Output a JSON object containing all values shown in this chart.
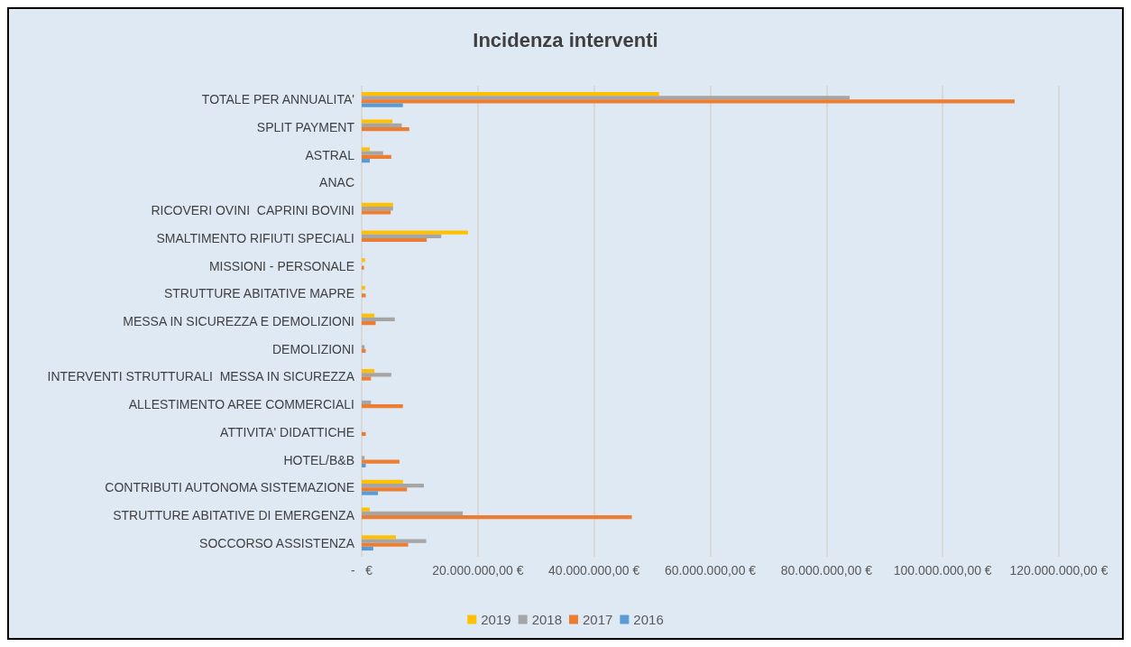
{
  "chart_data": {
    "type": "bar",
    "orientation": "horizontal",
    "title": "Incidenza interventi",
    "categories": [
      "TOTALE PER ANNUALITA'",
      "SPLIT PAYMENT",
      "ASTRAL",
      "ANAC",
      "RICOVERI OVINI  CAPRINI BOVINI",
      "SMALTIMENTO RIFIUTI SPECIALI",
      "MISSIONI - PERSONALE",
      "STRUTTURE ABITATIVE MAPRE",
      "MESSA IN SICUREZZA E DEMOLIZIONI",
      "DEMOLIZIONI",
      "INTERVENTI STRUTTURALI  MESSA IN SICUREZZA",
      "ALLESTIMENTO AREE COMMERCIALI",
      "ATTIVITA' DIDATTICHE",
      "HOTEL/B&B",
      "CONTRIBUTI AUTONOMA SISTEMAZIONE",
      "STRUTTURE ABITATIVE DI EMERGENZA",
      "SOCCORSO ASSISTENZA"
    ],
    "series": [
      {
        "name": "2019",
        "color": "#ffc000",
        "values": [
          51200000,
          5300000,
          1400000,
          0,
          5400000,
          18300000,
          600000,
          600000,
          2200000,
          0,
          2200000,
          0,
          0,
          0,
          7100000,
          1400000,
          5900000
        ]
      },
      {
        "name": "2018",
        "color": "#a5a5a5",
        "values": [
          84000000,
          6900000,
          3700000,
          0,
          5400000,
          13700000,
          null,
          0,
          5700000,
          500000,
          5100000,
          1600000,
          null,
          500000,
          10700000,
          17400000,
          11100000
        ]
      },
      {
        "name": "2017",
        "color": "#ed7d31",
        "values": [
          112400000,
          8200000,
          5100000,
          0,
          5000000,
          11200000,
          400000,
          700000,
          2400000,
          700000,
          1600000,
          7100000,
          700000,
          6500000,
          7800000,
          46500000,
          8000000
        ]
      },
      {
        "name": "2016",
        "color": "#5b9bd5",
        "values": [
          7100000,
          0,
          1400000,
          0,
          0,
          0,
          0,
          0,
          0,
          0,
          0,
          0,
          0,
          700000,
          2800000,
          0,
          2000000
        ]
      }
    ],
    "xlim": [
      0,
      120000000
    ],
    "xticks": [
      {
        "value": 0,
        "label": "-   €"
      },
      {
        "value": 20000000,
        "label": "20.000.000,00 €"
      },
      {
        "value": 40000000,
        "label": "40.000.000,00 €"
      },
      {
        "value": 60000000,
        "label": "60.000.000,00 €"
      },
      {
        "value": 80000000,
        "label": "80.000.000,00 €"
      },
      {
        "value": 100000000,
        "label": "100.000.000,00 €"
      },
      {
        "value": 120000000,
        "label": "120.000.000,00 €"
      }
    ],
    "grid": "x",
    "legend": "bottom"
  }
}
